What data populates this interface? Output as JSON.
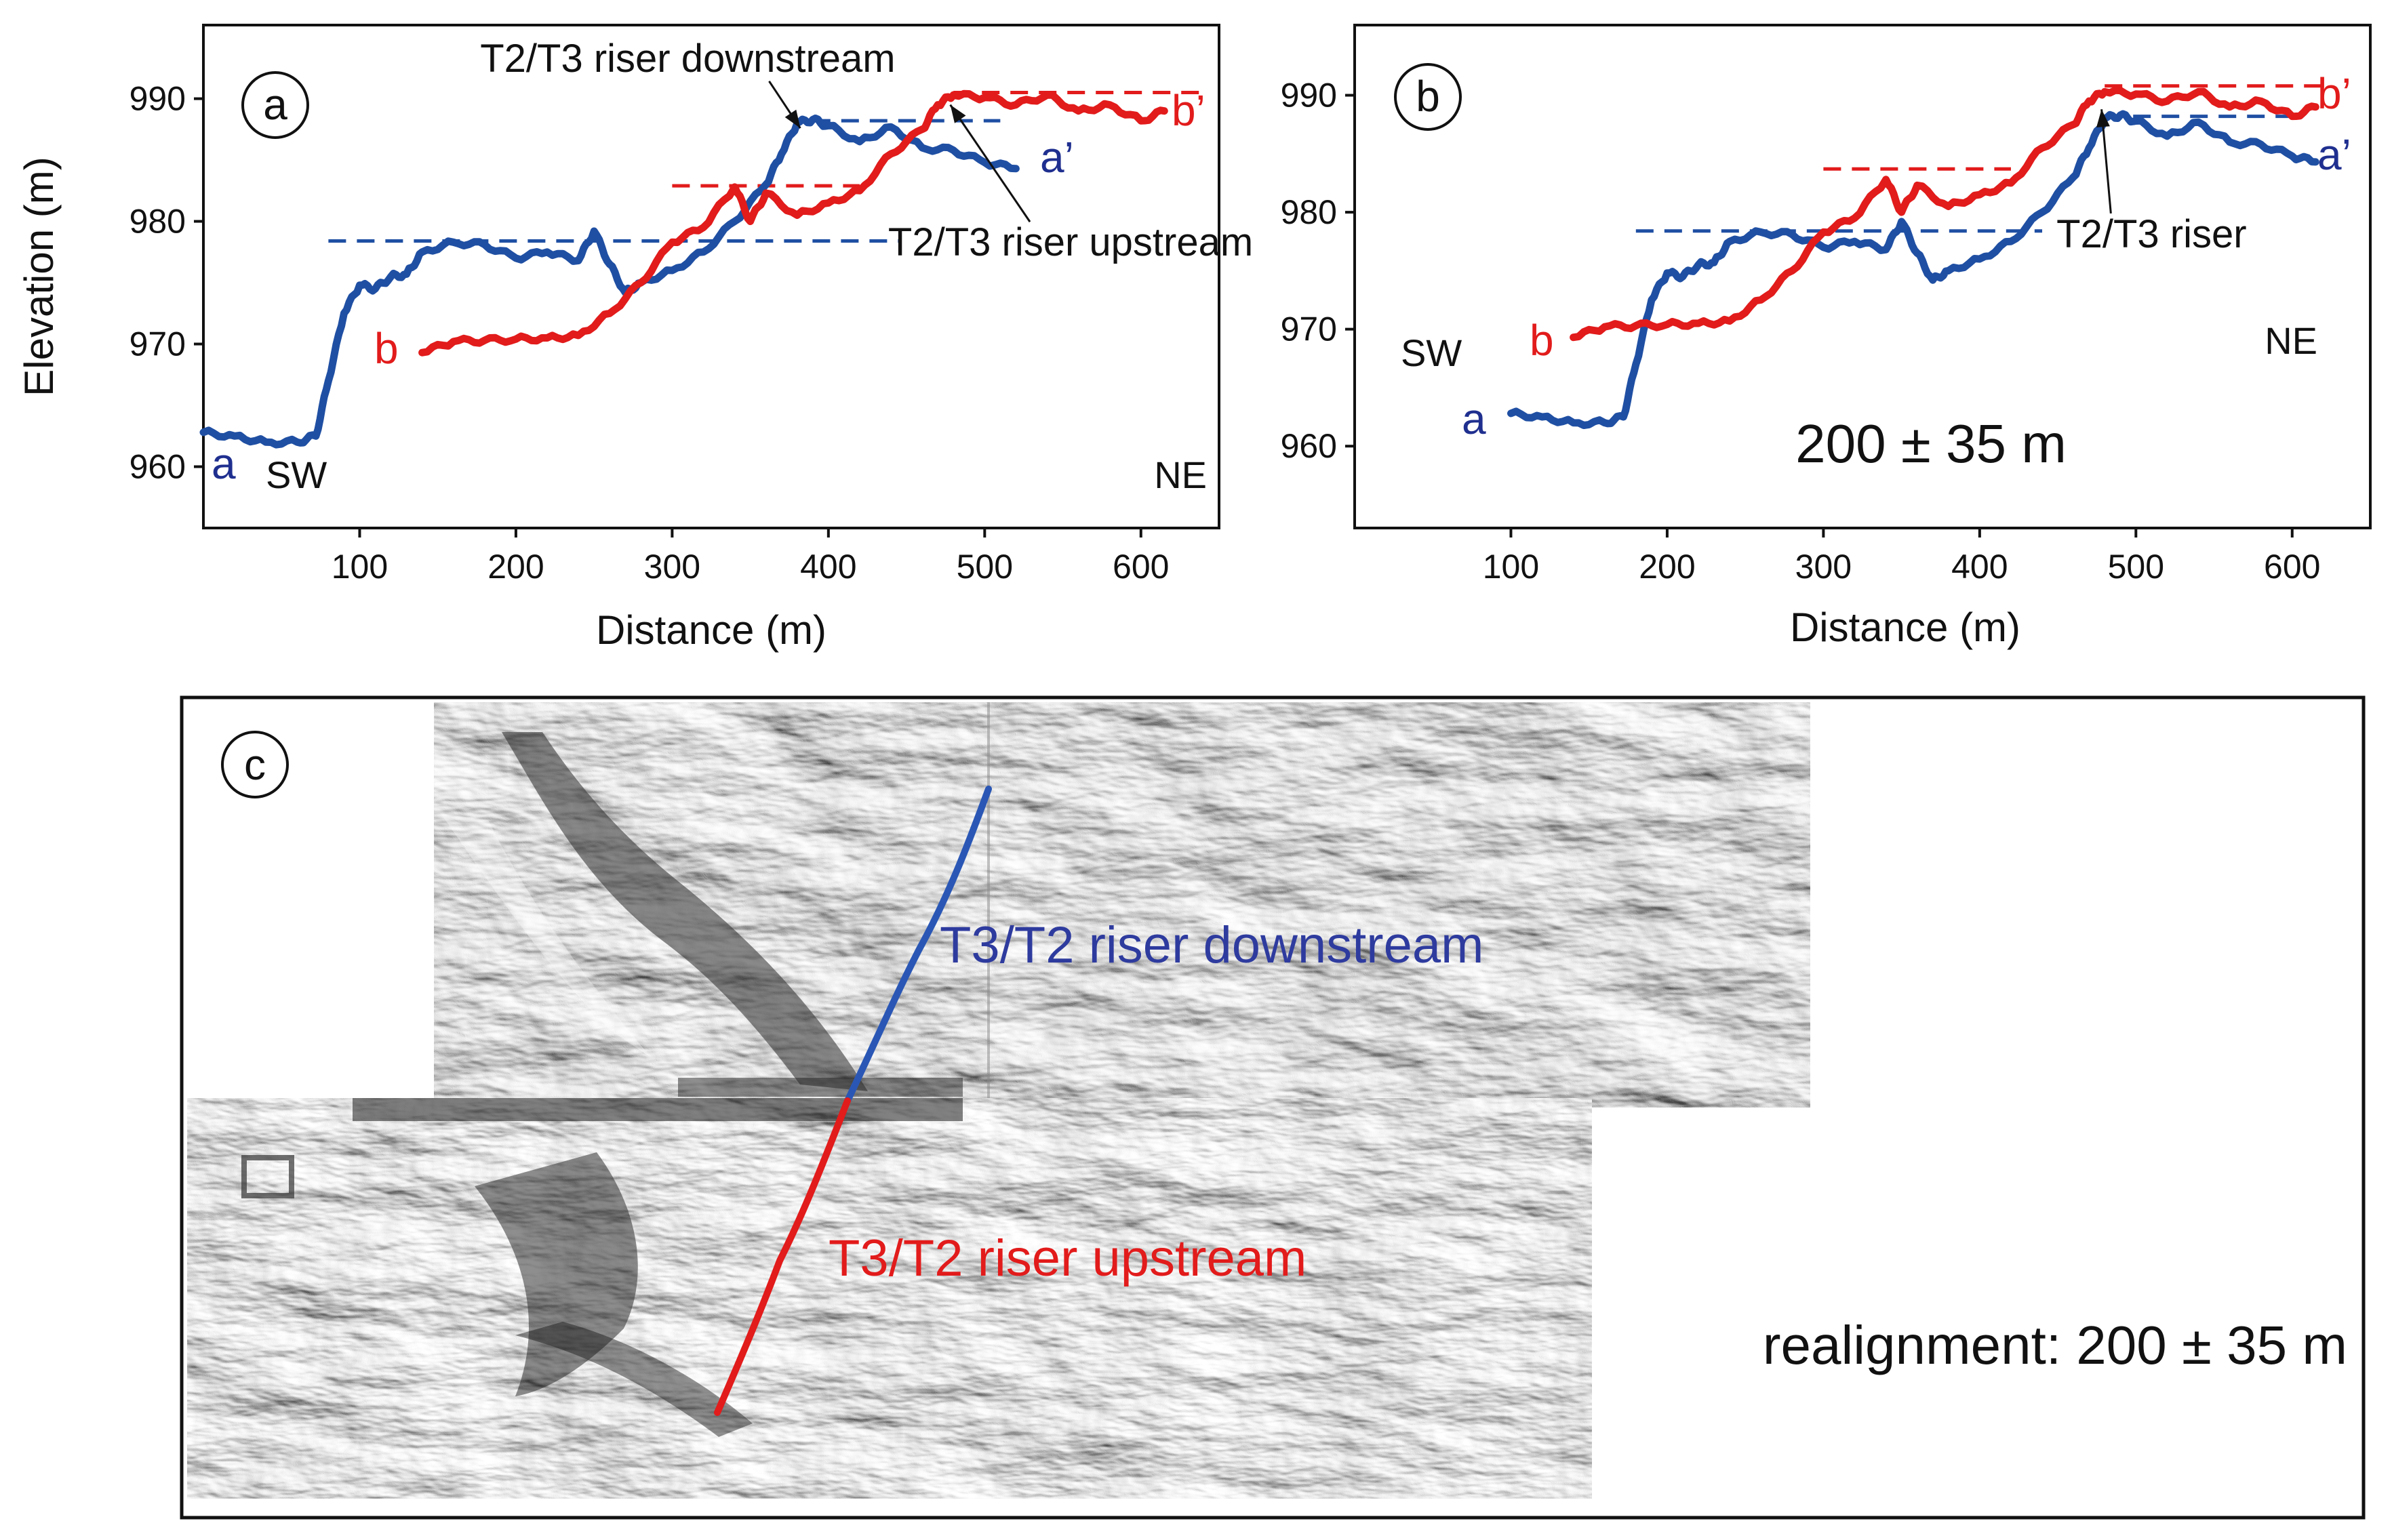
{
  "colors": {
    "profile_a": "#1f4fa3",
    "profile_b": "#e21b1b",
    "label_a": "#1f2f8f",
    "axis": "#111111"
  },
  "chart_data": [
    {
      "type": "line",
      "panel_label": "a",
      "xlabel": "Distance (m)",
      "ylabel": "Elevation (m)",
      "xlim": [
        0,
        650
      ],
      "ylim": [
        955,
        996
      ],
      "xticks": [
        100,
        200,
        300,
        400,
        500,
        600
      ],
      "yticks": [
        960,
        970,
        980,
        990
      ],
      "direction_left": "SW",
      "direction_right": "NE",
      "series": [
        {
          "name": "a",
          "end_label": "a",
          "end_label_prime": "a’",
          "color": "#1f4fa3",
          "x": [
            0,
            20,
            40,
            60,
            72,
            80,
            90,
            100,
            110,
            120,
            130,
            140,
            160,
            180,
            200,
            220,
            240,
            250,
            260,
            270,
            280,
            300,
            320,
            340,
            360,
            370,
            380,
            390,
            400,
            420,
            440,
            460,
            480,
            500,
            520
          ],
          "y": [
            962.8,
            962.5,
            962.0,
            962.0,
            962.5,
            967,
            972.5,
            974.8,
            974.5,
            975.5,
            975.7,
            977.5,
            978.3,
            978.1,
            977.0,
            977.5,
            976.8,
            979.2,
            976.5,
            974.2,
            975.0,
            976.0,
            977.5,
            980.0,
            983.0,
            985.5,
            988.0,
            988.3,
            987.8,
            986.5,
            987.7,
            986.0,
            985.8,
            984.8,
            984.3
          ]
        },
        {
          "name": "b",
          "end_label": "b",
          "end_label_prime": "b’",
          "color": "#e21b1b",
          "x": [
            140,
            160,
            180,
            200,
            220,
            240,
            260,
            280,
            300,
            320,
            340,
            350,
            360,
            380,
            400,
            420,
            440,
            460,
            470,
            480,
            500,
            520,
            540,
            560,
            580,
            600,
            615
          ],
          "y": [
            969.3,
            970.2,
            970.3,
            970.4,
            970.5,
            970.7,
            972.5,
            975.0,
            978.3,
            979.5,
            982.8,
            980.0,
            982.3,
            980.5,
            981.5,
            982.5,
            985.5,
            987.5,
            989.5,
            990.3,
            990.1,
            989.5,
            990.3,
            989.0,
            989.5,
            988.2,
            989.0
          ]
        }
      ],
      "reference_lines": [
        {
          "color": "#1f4fa3",
          "y": 978.4,
          "x": [
            80,
            445
          ]
        },
        {
          "color": "#e21b1b",
          "y": 982.9,
          "x": [
            300,
            420
          ]
        },
        {
          "color": "#1f4fa3",
          "y": 988.2,
          "x": [
            390,
            510
          ]
        },
        {
          "color": "#e21b1b",
          "y": 990.5,
          "x": [
            480,
            640
          ]
        }
      ],
      "annotations": [
        {
          "text": "T2/T3 riser downstream",
          "text_x": 310,
          "text_y": 992.2,
          "point_x": 382,
          "point_y": 987.6
        },
        {
          "text": "T2/T3 riser upstream",
          "text_x": 555,
          "text_y": 977.2,
          "point_x": 478,
          "point_y": 989.5
        }
      ]
    },
    {
      "type": "line",
      "panel_label": "b",
      "xlabel": "Distance (m)",
      "ylabel": "",
      "xlim": [
        0,
        650
      ],
      "ylim": [
        953,
        996
      ],
      "xticks": [
        100,
        200,
        300,
        400,
        500,
        600
      ],
      "yticks": [
        960,
        970,
        980,
        990
      ],
      "direction_left": "SW",
      "direction_right": "NE",
      "offset_label": "200 ± 35 m",
      "series": [
        {
          "name": "a",
          "end_label": "a",
          "end_label_prime": "a’",
          "color": "#1f4fa3",
          "x": [
            100,
            120,
            140,
            160,
            172,
            180,
            190,
            200,
            210,
            220,
            230,
            240,
            260,
            280,
            300,
            320,
            340,
            350,
            360,
            370,
            380,
            400,
            420,
            440,
            460,
            470,
            480,
            490,
            500,
            520,
            540,
            560,
            580,
            600,
            615
          ],
          "y": [
            962.8,
            962.5,
            962.0,
            962.0,
            962.5,
            967,
            972.5,
            974.8,
            974.5,
            975.5,
            975.7,
            977.5,
            978.3,
            978.1,
            977.0,
            977.5,
            976.8,
            979.2,
            976.5,
            974.2,
            975.0,
            976.0,
            977.5,
            980.0,
            983.0,
            985.5,
            988.0,
            988.3,
            987.8,
            986.5,
            987.7,
            986.0,
            985.8,
            984.8,
            984.3
          ]
        },
        {
          "name": "b",
          "end_label": "b",
          "end_label_prime": "b’",
          "color": "#e21b1b",
          "x": [
            140,
            160,
            180,
            200,
            220,
            240,
            260,
            280,
            300,
            320,
            340,
            350,
            360,
            380,
            400,
            420,
            440,
            460,
            470,
            480,
            500,
            520,
            540,
            560,
            580,
            600,
            615
          ],
          "y": [
            969.3,
            970.2,
            970.3,
            970.4,
            970.5,
            970.7,
            972.5,
            975.0,
            978.3,
            979.5,
            982.8,
            980.0,
            982.3,
            980.5,
            981.5,
            982.5,
            985.5,
            987.5,
            989.5,
            990.3,
            990.1,
            989.5,
            990.3,
            989.0,
            989.5,
            988.2,
            989.0
          ]
        }
      ],
      "reference_lines": [
        {
          "color": "#1f4fa3",
          "y": 978.4,
          "x": [
            180,
            440
          ]
        },
        {
          "color": "#e21b1b",
          "y": 983.7,
          "x": [
            300,
            420
          ]
        },
        {
          "color": "#1f4fa3",
          "y": 988.2,
          "x": [
            480,
            600
          ]
        },
        {
          "color": "#e21b1b",
          "y": 990.8,
          "x": [
            480,
            620
          ]
        }
      ],
      "annotations": [
        {
          "text": "T2/T3 riser",
          "text_x": 510,
          "text_y": 977.0,
          "point_x": 478,
          "point_y": 988.8
        }
      ]
    }
  ],
  "map_panel": {
    "panel_label": "c",
    "downstream_label": "T3/T2 riser downstream",
    "upstream_label": "T3/T2 riser upstream",
    "realignment_label": "realignment: 200 ± 35 m"
  }
}
